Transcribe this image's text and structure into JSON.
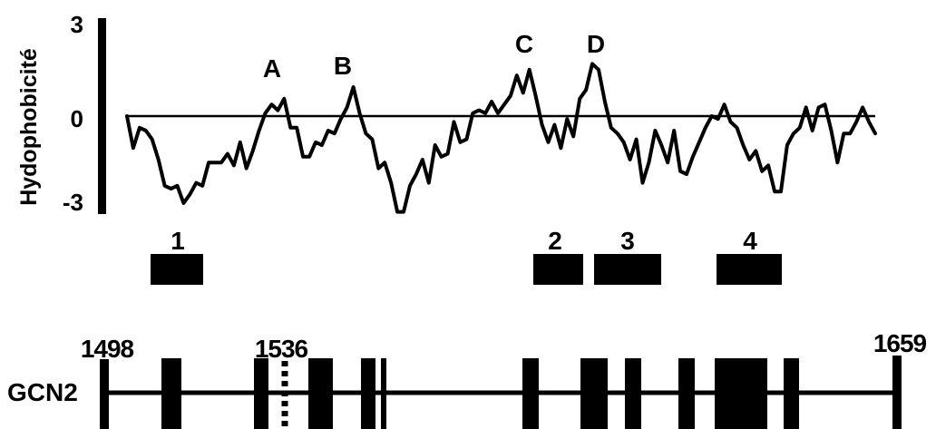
{
  "y_axis": {
    "label": "Hydophobicité",
    "ticks": [
      "3",
      "0",
      "-3"
    ]
  },
  "peaks": [
    "A",
    "B",
    "C",
    "D"
  ],
  "segments": [
    "1",
    "2",
    "3",
    "4"
  ],
  "sequence": {
    "name": "GCN2",
    "start": "1498",
    "mark": "1536",
    "end": "1659"
  },
  "chart_data": {
    "type": "line",
    "title": "",
    "xlabel": "",
    "ylabel": "Hydophobicité",
    "ylim": [
      -3,
      3
    ],
    "y_ticks": [
      3,
      0,
      -3
    ],
    "grid": false,
    "series": [
      {
        "values": [
          0,
          -1.1,
          -0.4,
          -0.5,
          -0.8,
          -1.5,
          -2.4,
          -2.5,
          -2.4,
          -3.0,
          -2.7,
          -2.3,
          -2.4,
          -1.6,
          -1.6,
          -1.6,
          -1.3,
          -1.7,
          -0.9,
          -1.8,
          -1.2,
          -0.5,
          0.1,
          0.4,
          0.2,
          0.6,
          -0.4,
          -0.4,
          -1.4,
          -1.4,
          -0.9,
          -1.0,
          -0.5,
          -0.6,
          -0.1,
          0.3,
          1.0,
          0.1,
          -0.6,
          -0.8,
          -1.8,
          -1.6,
          -2.3,
          -3.3,
          -3.3,
          -2.4,
          -2.0,
          -1.5,
          -2.3,
          -1.0,
          -1.4,
          -1.3,
          -0.2,
          -0.9,
          -0.8,
          0.1,
          0.2,
          0.1,
          0.5,
          0.1,
          0.4,
          0.7,
          1.4,
          0.8,
          1.6,
          0.7,
          -0.3,
          -0.9,
          -0.3,
          -1.1,
          -0.1,
          -0.7,
          0.6,
          0.9,
          1.8,
          1.6,
          0.5,
          -0.4,
          -0.6,
          -0.9,
          -1.5,
          -0.8,
          -2.3,
          -1.6,
          -0.5,
          -1.0,
          -1.6,
          -0.5,
          -1.9,
          -2.0,
          -1.4,
          -0.9,
          -0.4,
          0.0,
          -0.1,
          0.4,
          -0.2,
          -0.4,
          -1.0,
          -1.5,
          -1.2,
          -1.9,
          -1.7,
          -2.6,
          -2.6,
          -1.0,
          -0.6,
          -0.4,
          0.3,
          -0.5,
          0.3,
          0.4,
          -0.5,
          -1.6,
          -0.6,
          -0.6,
          -0.2,
          0.3,
          -0.2,
          -0.6
        ]
      }
    ],
    "peak_labels": [
      "A",
      "B",
      "C",
      "D"
    ],
    "segment_labels": [
      "1",
      "2",
      "3",
      "4"
    ]
  }
}
